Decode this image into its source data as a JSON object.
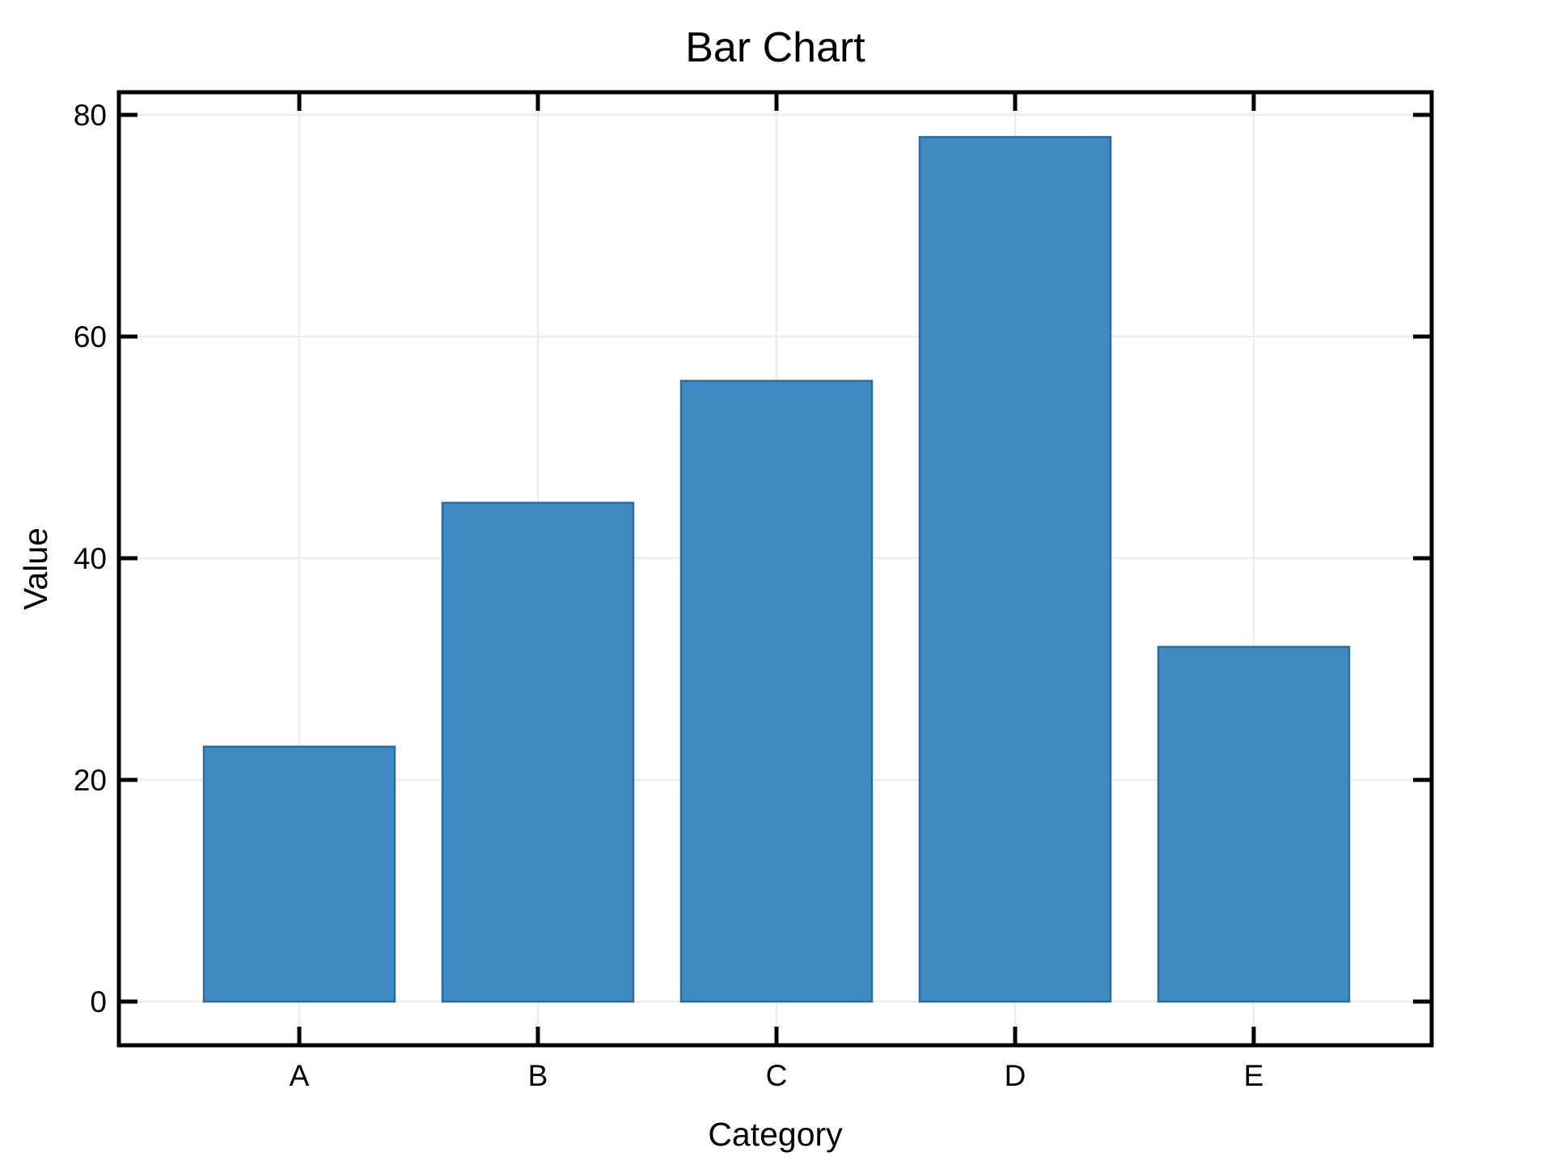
{
  "chart_data": {
    "type": "bar",
    "title": "Bar Chart",
    "xlabel": "Category",
    "ylabel": "Value",
    "categories": [
      "A",
      "B",
      "C",
      "D",
      "E"
    ],
    "values": [
      23,
      45,
      56,
      78,
      32
    ],
    "yticks": [
      0,
      20,
      40,
      60,
      80
    ],
    "ylim": [
      -4,
      82
    ],
    "grid": true,
    "legend": false,
    "colors": {
      "bar_fill": "#3e8bc4",
      "bar_stroke": "#2d6b9e",
      "grid": "#ededed",
      "axis": "#000000",
      "text": "#000000",
      "background": "#ffffff"
    }
  }
}
